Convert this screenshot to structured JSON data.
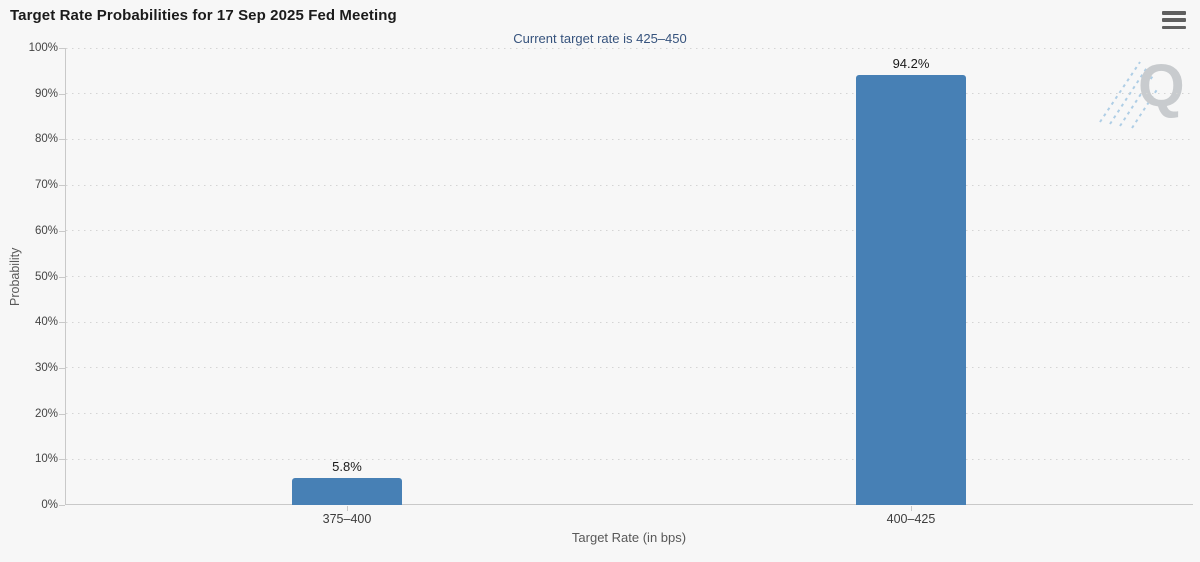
{
  "header": {
    "menu_icon": "hamburger-menu-icon"
  },
  "chart_data": {
    "type": "bar",
    "title": "Target Rate Probabilities for 17 Sep 2025 Fed Meeting",
    "subtitle": "Current target rate is 425–450",
    "categories": [
      "375–400",
      "400–425"
    ],
    "values": [
      5.8,
      94.2
    ],
    "data_labels": [
      "5.8%",
      "94.2%"
    ],
    "xlabel": "Target Rate (in bps)",
    "ylabel": "Probability",
    "ylim": [
      0,
      100
    ],
    "ytick_step": 10,
    "ytick_labels": [
      "0%",
      "10%",
      "20%",
      "30%",
      "40%",
      "50%",
      "60%",
      "70%",
      "80%",
      "90%",
      "100%"
    ],
    "grid": "horizontal-dotted",
    "legend_position": "none",
    "watermark_text": "Q",
    "colors": {
      "bar": "#4780B5",
      "subtitle_text": "#36537D",
      "grid_dots": "#d4d4d4",
      "axis_line": "#c9c9c9",
      "watermark_q": "#c8cbce",
      "watermark_dashes": "#a3c7e3"
    }
  }
}
